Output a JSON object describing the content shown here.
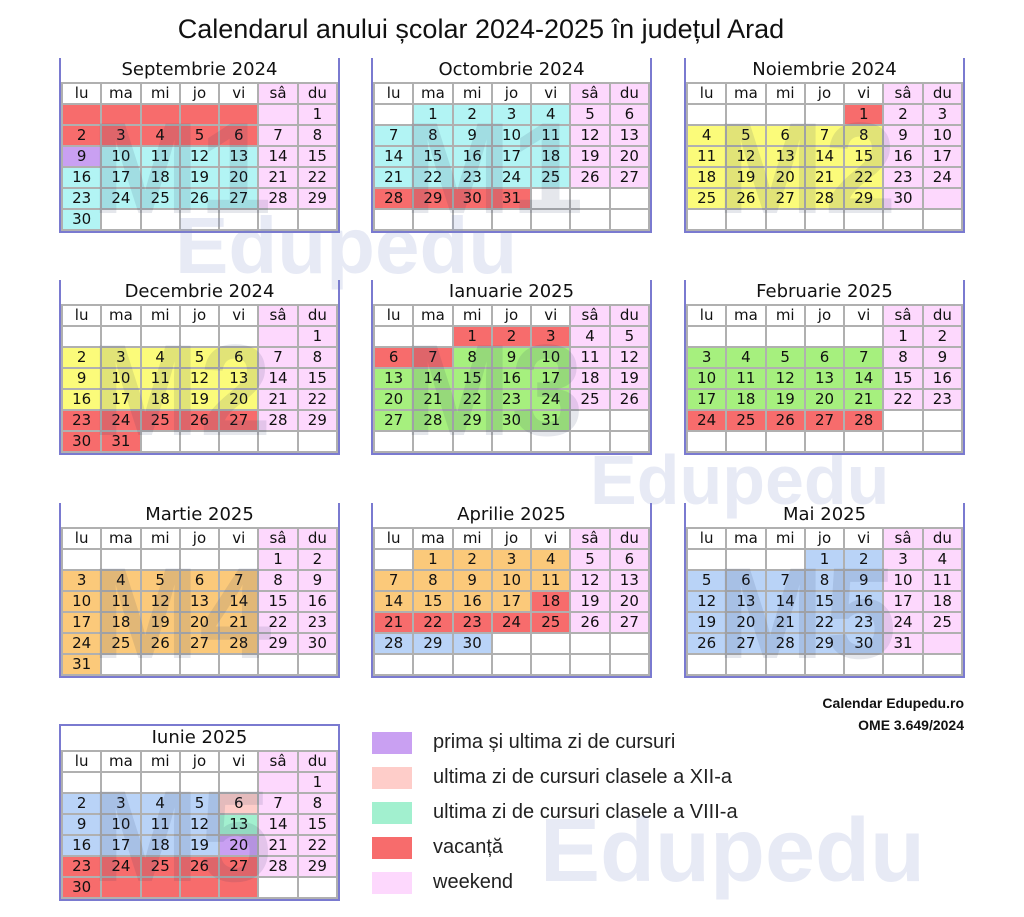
{
  "title": "Calendarul anului școlar 2024-2025 în județul Arad",
  "weekdays": [
    "lu",
    "ma",
    "mi",
    "jo",
    "vi",
    "sâ",
    "du"
  ],
  "palette": {
    "r": "#f76c6c",
    "c": "#b2f4f4",
    "y": "#fbfb7a",
    "g": "#a6f07e",
    "o": "#fbc97a",
    "b": "#b9d3f7",
    "p": "#fdd8fd",
    "v": "#c9a0f2",
    "s": "#fecdc9",
    "m": "#a2f0cf",
    "w": "#ffffff"
  },
  "months": [
    {
      "name": "Septembrie 2024",
      "watermark": "M1",
      "rows": [
        [
          "",
          "",
          "",
          "",
          "",
          "",
          "1"
        ],
        [
          "2",
          "3",
          "4",
          "5",
          "6",
          "7",
          "8"
        ],
        [
          "9",
          "10",
          "11",
          "12",
          "13",
          "14",
          "15"
        ],
        [
          "16",
          "17",
          "18",
          "19",
          "20",
          "21",
          "22"
        ],
        [
          "23",
          "24",
          "25",
          "26",
          "27",
          "28",
          "29"
        ],
        [
          "30",
          "",
          "",
          "",
          "",
          "",
          ""
        ]
      ],
      "fills": [
        "rrrrrpp",
        "rrrrrpp",
        "vccccpp",
        "cccccpp",
        "cccccpp",
        "cwwwwww"
      ]
    },
    {
      "name": "Octombrie 2024",
      "watermark": "M1",
      "rows": [
        [
          "",
          "1",
          "2",
          "3",
          "4",
          "5",
          "6"
        ],
        [
          "7",
          "8",
          "9",
          "10",
          "11",
          "12",
          "13"
        ],
        [
          "14",
          "15",
          "16",
          "17",
          "18",
          "19",
          "20"
        ],
        [
          "21",
          "22",
          "23",
          "24",
          "25",
          "26",
          "27"
        ],
        [
          "28",
          "29",
          "30",
          "31",
          "",
          "",
          ""
        ],
        [
          "",
          "",
          "",
          "",
          "",
          "",
          ""
        ]
      ],
      "fills": [
        "wccccpp",
        "cccccpp",
        "cccccpp",
        "cccccpp",
        "rrrrwww",
        "wwwwwww"
      ]
    },
    {
      "name": "Noiembrie 2024",
      "watermark": "M2",
      "rows": [
        [
          "",
          "",
          "",
          "",
          "1",
          "2",
          "3"
        ],
        [
          "4",
          "5",
          "6",
          "7",
          "8",
          "9",
          "10"
        ],
        [
          "11",
          "12",
          "13",
          "14",
          "15",
          "16",
          "17"
        ],
        [
          "18",
          "19",
          "20",
          "21",
          "22",
          "23",
          "24"
        ],
        [
          "25",
          "26",
          "27",
          "28",
          "29",
          "30",
          ""
        ],
        [
          "",
          "",
          "",
          "",
          "",
          "",
          ""
        ]
      ],
      "fills": [
        "wwwwrpp",
        "yyyyypp",
        "yyyyypp",
        "yyyyypp",
        "yyyyypp",
        "wwwwwww"
      ]
    },
    {
      "name": "Decembrie 2024",
      "watermark": "M2",
      "rows": [
        [
          "",
          "",
          "",
          "",
          "",
          "",
          "1"
        ],
        [
          "2",
          "3",
          "4",
          "5",
          "6",
          "7",
          "8"
        ],
        [
          "9",
          "10",
          "11",
          "12",
          "13",
          "14",
          "15"
        ],
        [
          "16",
          "17",
          "18",
          "19",
          "20",
          "21",
          "22"
        ],
        [
          "23",
          "24",
          "25",
          "26",
          "27",
          "28",
          "29"
        ],
        [
          "30",
          "31",
          "",
          "",
          "",
          "",
          ""
        ]
      ],
      "fills": [
        "wwwwwpp",
        "yyyyypp",
        "yyyyypp",
        "yyyyypp",
        "rrrrrpp",
        "rrwwwww"
      ]
    },
    {
      "name": "Ianuarie 2025",
      "watermark": "M3",
      "rows": [
        [
          "",
          "",
          "1",
          "2",
          "3",
          "4",
          "5"
        ],
        [
          "6",
          "7",
          "8",
          "9",
          "10",
          "11",
          "12"
        ],
        [
          "13",
          "14",
          "15",
          "16",
          "17",
          "18",
          "19"
        ],
        [
          "20",
          "21",
          "22",
          "23",
          "24",
          "25",
          "26"
        ],
        [
          "27",
          "28",
          "29",
          "30",
          "31",
          "",
          ""
        ],
        [
          "",
          "",
          "",
          "",
          "",
          "",
          ""
        ]
      ],
      "fills": [
        "wwrrrpp",
        "rrgggpp",
        "gggggpp",
        "gggggpp",
        "gggggww",
        "wwwwwww"
      ]
    },
    {
      "name": "Februarie 2025",
      "watermark": "",
      "rows": [
        [
          "",
          "",
          "",
          "",
          "",
          "1",
          "2"
        ],
        [
          "3",
          "4",
          "5",
          "6",
          "7",
          "8",
          "9"
        ],
        [
          "10",
          "11",
          "12",
          "13",
          "14",
          "15",
          "16"
        ],
        [
          "17",
          "18",
          "19",
          "20",
          "21",
          "22",
          "23"
        ],
        [
          "24",
          "25",
          "26",
          "27",
          "28",
          "",
          ""
        ],
        [
          "",
          "",
          "",
          "",
          "",
          "",
          ""
        ]
      ],
      "fills": [
        "wwwwwpp",
        "gggggpp",
        "gggggpp",
        "gggggpp",
        "rrrrrww",
        "wwwwwww"
      ]
    },
    {
      "name": "Martie 2025",
      "watermark": "M4",
      "rows": [
        [
          "",
          "",
          "",
          "",
          "",
          "1",
          "2"
        ],
        [
          "3",
          "4",
          "5",
          "6",
          "7",
          "8",
          "9"
        ],
        [
          "10",
          "11",
          "12",
          "13",
          "14",
          "15",
          "16"
        ],
        [
          "17",
          "18",
          "19",
          "20",
          "21",
          "22",
          "23"
        ],
        [
          "24",
          "25",
          "26",
          "27",
          "28",
          "29",
          "30"
        ],
        [
          "31",
          "",
          "",
          "",
          "",
          "",
          ""
        ]
      ],
      "fills": [
        "wwwwwpp",
        "ooooopp",
        "ooooopp",
        "ooooopp",
        "ooooopp",
        "owwwwww"
      ]
    },
    {
      "name": "Aprilie 2025",
      "watermark": "",
      "rows": [
        [
          "",
          "1",
          "2",
          "3",
          "4",
          "5",
          "6"
        ],
        [
          "7",
          "8",
          "9",
          "10",
          "11",
          "12",
          "13"
        ],
        [
          "14",
          "15",
          "16",
          "17",
          "18",
          "19",
          "20"
        ],
        [
          "21",
          "22",
          "23",
          "24",
          "25",
          "26",
          "27"
        ],
        [
          "28",
          "29",
          "30",
          "",
          "",
          "",
          ""
        ],
        [
          "",
          "",
          "",
          "",
          "",
          "",
          ""
        ]
      ],
      "fills": [
        "woooopp",
        "ooooopp",
        "oooorpp",
        "rrrrrpp",
        "bbbwwww",
        "wwwwwww"
      ]
    },
    {
      "name": "Mai 2025",
      "watermark": "M5",
      "rows": [
        [
          "",
          "",
          "",
          "1",
          "2",
          "3",
          "4"
        ],
        [
          "5",
          "6",
          "7",
          "8",
          "9",
          "10",
          "11"
        ],
        [
          "12",
          "13",
          "14",
          "15",
          "16",
          "17",
          "18"
        ],
        [
          "19",
          "20",
          "21",
          "22",
          "23",
          "24",
          "25"
        ],
        [
          "26",
          "27",
          "28",
          "29",
          "30",
          "31",
          ""
        ],
        [
          "",
          "",
          "",
          "",
          "",
          "",
          ""
        ]
      ],
      "fills": [
        "wwwbbpp",
        "bbbbbpp",
        "bbbbbpp",
        "bbbbbpp",
        "bbbbbpp",
        "wwwwwww"
      ]
    },
    {
      "name": "Iunie 2025",
      "watermark": "M5",
      "rows": [
        [
          "",
          "",
          "",
          "",
          "",
          "",
          "1"
        ],
        [
          "2",
          "3",
          "4",
          "5",
          "6",
          "7",
          "8"
        ],
        [
          "9",
          "10",
          "11",
          "12",
          "13",
          "14",
          "15"
        ],
        [
          "16",
          "17",
          "18",
          "19",
          "20",
          "21",
          "22"
        ],
        [
          "23",
          "24",
          "25",
          "26",
          "27",
          "28",
          "29"
        ],
        [
          "30",
          "",
          "",
          "",
          "",
          "",
          ""
        ]
      ],
      "fills": [
        "wwwwwpp",
        "bbbbspp",
        "bbbbmpp",
        "bbbbvpp",
        "rrrrrpp",
        "rrrrrww"
      ]
    }
  ],
  "legend": [
    {
      "label": "prima și ultima zi de cursuri",
      "color": "#c9a0f2"
    },
    {
      "label": "ultima zi de cursuri clasele a XII-a",
      "color": "#fecdc9"
    },
    {
      "label": "ultima zi de cursuri clasele a VIII-a",
      "color": "#a2f0cf"
    },
    {
      "label": "vacanță",
      "color": "#f76c6c"
    },
    {
      "label": "weekend",
      "color": "#fdd8fd"
    }
  ],
  "footer": {
    "line1": "Calendar Edupedu.ro",
    "line2": "OME 3.649/2024"
  },
  "watermark_text": "Edupedu"
}
